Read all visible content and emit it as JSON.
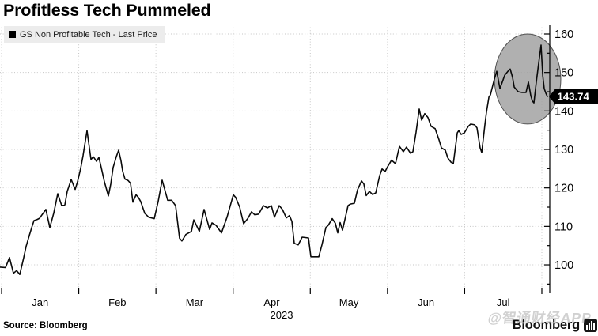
{
  "title": "Profitless Tech Pummeled",
  "legend": {
    "label": "GS Non Profitable Tech - Last Price"
  },
  "source": "Source: Bloomberg",
  "footer": {
    "brand": "Bloomberg",
    "watermark": "@智通财经APP"
  },
  "chart_data": {
    "type": "line",
    "title": "GS Non Profitable Tech - Last Price",
    "line_color": "#0a0a0a",
    "grid": "dotted",
    "legend_position": "top-left",
    "x_axis": {
      "categories": [
        "Jan",
        "Feb",
        "Mar",
        "Apr",
        "May",
        "Jun",
        "Jul"
      ],
      "year_label": "2023",
      "unit": "month index, 0 = start of Jan 2023",
      "range_months": [
        0,
        7.1
      ]
    },
    "y_axis": {
      "ticks": [
        100,
        110,
        120,
        130,
        140,
        150,
        160
      ],
      "minor_tick_step": 5,
      "range": [
        97,
        161
      ],
      "side": "right"
    },
    "last_price": 143.74,
    "last_price_label": "143.74",
    "last_price_marker_color": "#000000",
    "highlight_ellipse": {
      "center_month": 6.816,
      "center_price": 148.3,
      "radius_months": 0.43,
      "radius_price": 11.7,
      "fill": "#9f9f9f"
    },
    "series": [
      {
        "name": "GS Non Profitable Tech - Last Price",
        "points": [
          [
            -0.02,
            99.4
          ],
          [
            0.051,
            99.3
          ],
          [
            0.102,
            101.9
          ],
          [
            0.154,
            97.8
          ],
          [
            0.195,
            98.5
          ],
          [
            0.236,
            97.5
          ],
          [
            0.287,
            101.9
          ],
          [
            0.318,
            104.8
          ],
          [
            0.359,
            107.6
          ],
          [
            0.39,
            109.7
          ],
          [
            0.42,
            111.5
          ],
          [
            0.461,
            111.8
          ],
          [
            0.492,
            112.1
          ],
          [
            0.512,
            112.7
          ],
          [
            0.574,
            114.4
          ],
          [
            0.625,
            109.7
          ],
          [
            0.676,
            113.5
          ],
          [
            0.728,
            118.5
          ],
          [
            0.779,
            115.4
          ],
          [
            0.82,
            115.6
          ],
          [
            0.851,
            119.1
          ],
          [
            0.902,
            122.2
          ],
          [
            0.953,
            119.6
          ],
          [
            0.984,
            121.6
          ],
          [
            1.025,
            125.1
          ],
          [
            1.056,
            128.4
          ],
          [
            1.107,
            134.9
          ],
          [
            1.158,
            127.4
          ],
          [
            1.189,
            128.1
          ],
          [
            1.23,
            126.9
          ],
          [
            1.261,
            127.9
          ],
          [
            1.291,
            125.3
          ],
          [
            1.332,
            121.6
          ],
          [
            1.384,
            117.9
          ],
          [
            1.414,
            121.0
          ],
          [
            1.445,
            125.3
          ],
          [
            1.486,
            128.1
          ],
          [
            1.517,
            129.8
          ],
          [
            1.548,
            127.0
          ],
          [
            1.568,
            124.4
          ],
          [
            1.599,
            122.3
          ],
          [
            1.64,
            121.9
          ],
          [
            1.671,
            121.2
          ],
          [
            1.701,
            116.3
          ],
          [
            1.742,
            118.2
          ],
          [
            1.773,
            117.5
          ],
          [
            1.804,
            116.4
          ],
          [
            1.855,
            113.4
          ],
          [
            1.906,
            112.4
          ],
          [
            1.978,
            112.0
          ],
          [
            2.029,
            116.5
          ],
          [
            2.081,
            122.0
          ],
          [
            2.122,
            119.0
          ],
          [
            2.152,
            116.8
          ],
          [
            2.204,
            116.8
          ],
          [
            2.255,
            115.4
          ],
          [
            2.306,
            106.9
          ],
          [
            2.337,
            106.2
          ],
          [
            2.388,
            107.9
          ],
          [
            2.46,
            108.7
          ],
          [
            2.491,
            111.7
          ],
          [
            2.562,
            108.7
          ],
          [
            2.624,
            114.4
          ],
          [
            2.696,
            109.2
          ],
          [
            2.726,
            110.9
          ],
          [
            2.778,
            110.3
          ],
          [
            2.849,
            108.3
          ],
          [
            2.921,
            112.4
          ],
          [
            3.003,
            118.2
          ],
          [
            3.034,
            117.5
          ],
          [
            3.085,
            115.0
          ],
          [
            3.136,
            110.7
          ],
          [
            3.188,
            112.0
          ],
          [
            3.239,
            113.8
          ],
          [
            3.28,
            113.0
          ],
          [
            3.331,
            113.2
          ],
          [
            3.392,
            115.4
          ],
          [
            3.444,
            114.8
          ],
          [
            3.495,
            115.4
          ],
          [
            3.536,
            112.4
          ],
          [
            3.597,
            115.4
          ],
          [
            3.638,
            114.4
          ],
          [
            3.69,
            112.2
          ],
          [
            3.731,
            112.8
          ],
          [
            3.761,
            111.3
          ],
          [
            3.792,
            105.6
          ],
          [
            3.843,
            105.2
          ],
          [
            3.895,
            107.2
          ],
          [
            3.977,
            107.0
          ],
          [
            4.007,
            102.1
          ],
          [
            4.11,
            102.1
          ],
          [
            4.151,
            105.2
          ],
          [
            4.202,
            109.7
          ],
          [
            4.233,
            110.3
          ],
          [
            4.284,
            112.0
          ],
          [
            4.325,
            110.8
          ],
          [
            4.356,
            108.3
          ],
          [
            4.387,
            111.0
          ],
          [
            4.417,
            109.0
          ],
          [
            4.489,
            115.4
          ],
          [
            4.52,
            115.8
          ],
          [
            4.571,
            116.0
          ],
          [
            4.612,
            119.5
          ],
          [
            4.663,
            121.8
          ],
          [
            4.694,
            121.0
          ],
          [
            4.725,
            118.0
          ],
          [
            4.766,
            119.1
          ],
          [
            4.807,
            118.3
          ],
          [
            4.848,
            118.7
          ],
          [
            4.899,
            123.2
          ],
          [
            4.93,
            124.9
          ],
          [
            4.971,
            124.3
          ],
          [
            5.002,
            125.5
          ],
          [
            5.053,
            127.2
          ],
          [
            5.104,
            126.3
          ],
          [
            5.155,
            130.8
          ],
          [
            5.206,
            129.4
          ],
          [
            5.247,
            130.6
          ],
          [
            5.299,
            129.0
          ],
          [
            5.33,
            129.4
          ],
          [
            5.371,
            134.5
          ],
          [
            5.412,
            140.5
          ],
          [
            5.442,
            137.6
          ],
          [
            5.483,
            139.3
          ],
          [
            5.524,
            138.3
          ],
          [
            5.565,
            136.0
          ],
          [
            5.617,
            135.4
          ],
          [
            5.668,
            132.5
          ],
          [
            5.699,
            130.4
          ],
          [
            5.75,
            129.8
          ],
          [
            5.781,
            127.8
          ],
          [
            5.822,
            126.7
          ],
          [
            5.853,
            126.3
          ],
          [
            5.904,
            134.3
          ],
          [
            5.924,
            134.9
          ],
          [
            5.955,
            133.9
          ],
          [
            5.996,
            134.3
          ],
          [
            6.047,
            136.0
          ],
          [
            6.078,
            136.6
          ],
          [
            6.129,
            136.4
          ],
          [
            6.16,
            135.6
          ],
          [
            6.201,
            130.4
          ],
          [
            6.221,
            129.2
          ],
          [
            6.262,
            136.4
          ],
          [
            6.283,
            139.7
          ],
          [
            6.314,
            143.6
          ],
          [
            6.334,
            144.2
          ],
          [
            6.385,
            148.3
          ],
          [
            6.416,
            150.3
          ],
          [
            6.457,
            145.8
          ],
          [
            6.488,
            147.5
          ],
          [
            6.519,
            149.3
          ],
          [
            6.56,
            150.3
          ],
          [
            6.59,
            150.9
          ],
          [
            6.621,
            148.7
          ],
          [
            6.642,
            146.2
          ],
          [
            6.693,
            145.0
          ],
          [
            6.744,
            144.8
          ],
          [
            6.795,
            144.8
          ],
          [
            6.826,
            147.5
          ],
          [
            6.857,
            144.0
          ],
          [
            6.877,
            142.6
          ],
          [
            6.898,
            142.1
          ],
          [
            6.929,
            147.7
          ],
          [
            6.959,
            152.4
          ],
          [
            6.99,
            157.1
          ],
          [
            7.011,
            149.3
          ],
          [
            7.031,
            145.8
          ],
          [
            7.052,
            144.6
          ],
          [
            7.072,
            143.74
          ]
        ]
      }
    ]
  }
}
